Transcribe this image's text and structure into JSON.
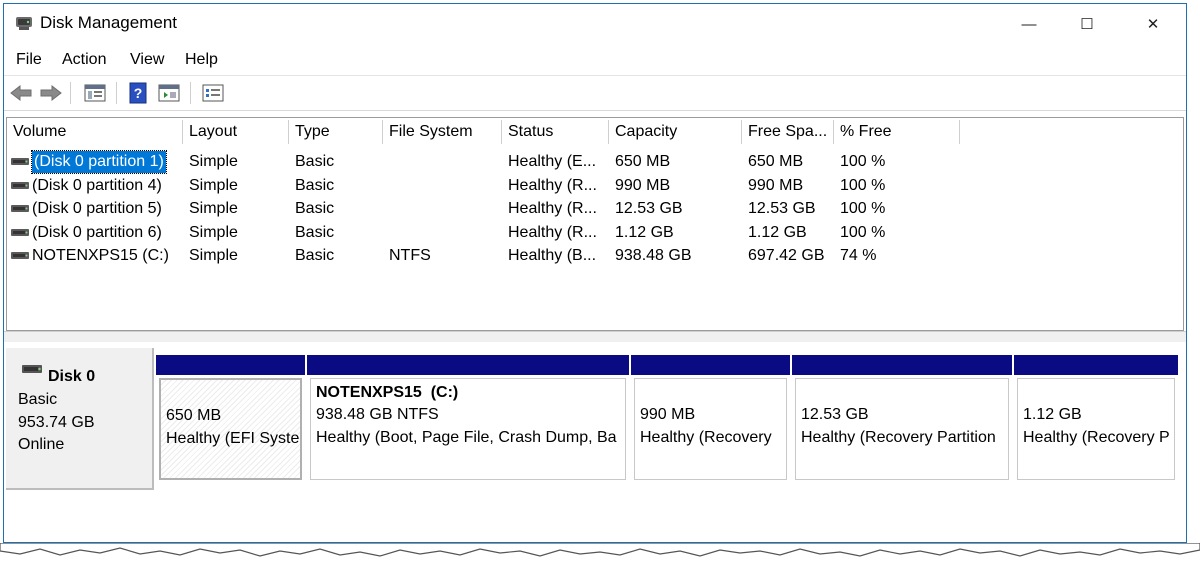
{
  "window": {
    "title": "Disk Management",
    "minimize": "—",
    "maximize": "☐",
    "close": "✕"
  },
  "menu": [
    "File",
    "Action",
    "View",
    "Help"
  ],
  "toolbar": [
    "back-icon",
    "forward-icon",
    "properties-icon",
    "help-icon",
    "console-icon",
    "settings-icon"
  ],
  "columns": [
    "Volume",
    "Layout",
    "Type",
    "File System",
    "Status",
    "Capacity",
    "Free Spa...",
    "% Free"
  ],
  "volumes": [
    {
      "volume": "(Disk 0 partition 1)",
      "layout": "Simple",
      "type": "Basic",
      "fs": "",
      "status": "Healthy (E...",
      "capacity": "650 MB",
      "free": "650 MB",
      "pct": "100 %"
    },
    {
      "volume": "(Disk 0 partition 4)",
      "layout": "Simple",
      "type": "Basic",
      "fs": "",
      "status": "Healthy (R...",
      "capacity": "990 MB",
      "free": "990 MB",
      "pct": "100 %"
    },
    {
      "volume": "(Disk 0 partition 5)",
      "layout": "Simple",
      "type": "Basic",
      "fs": "",
      "status": "Healthy (R...",
      "capacity": "12.53 GB",
      "free": "12.53 GB",
      "pct": "100 %"
    },
    {
      "volume": "(Disk 0 partition 6)",
      "layout": "Simple",
      "type": "Basic",
      "fs": "",
      "status": "Healthy (R...",
      "capacity": "1.12 GB",
      "free": "1.12 GB",
      "pct": "100 %"
    },
    {
      "volume": "NOTENXPS15 (C:)",
      "layout": "Simple",
      "type": "Basic",
      "fs": "NTFS",
      "status": "Healthy (B...",
      "capacity": "938.48 GB",
      "free": "697.42 GB",
      "pct": "74 %"
    }
  ],
  "disk": {
    "name": "Disk 0",
    "type": "Basic",
    "size": "953.74 GB",
    "state": "Online"
  },
  "partitions": [
    {
      "name": "",
      "size": "650 MB",
      "status": "Healthy (EFI Syste"
    },
    {
      "name": "NOTENXPS15  (C:)",
      "size": "938.48 GB NTFS",
      "status": "Healthy (Boot, Page File, Crash Dump, Ba"
    },
    {
      "name": "",
      "size": "990 MB",
      "status": "Healthy (Recovery"
    },
    {
      "name": "",
      "size": "12.53 GB",
      "status": "Healthy (Recovery Partition"
    },
    {
      "name": "",
      "size": "1.12 GB",
      "status": "Healthy (Recovery P"
    }
  ]
}
